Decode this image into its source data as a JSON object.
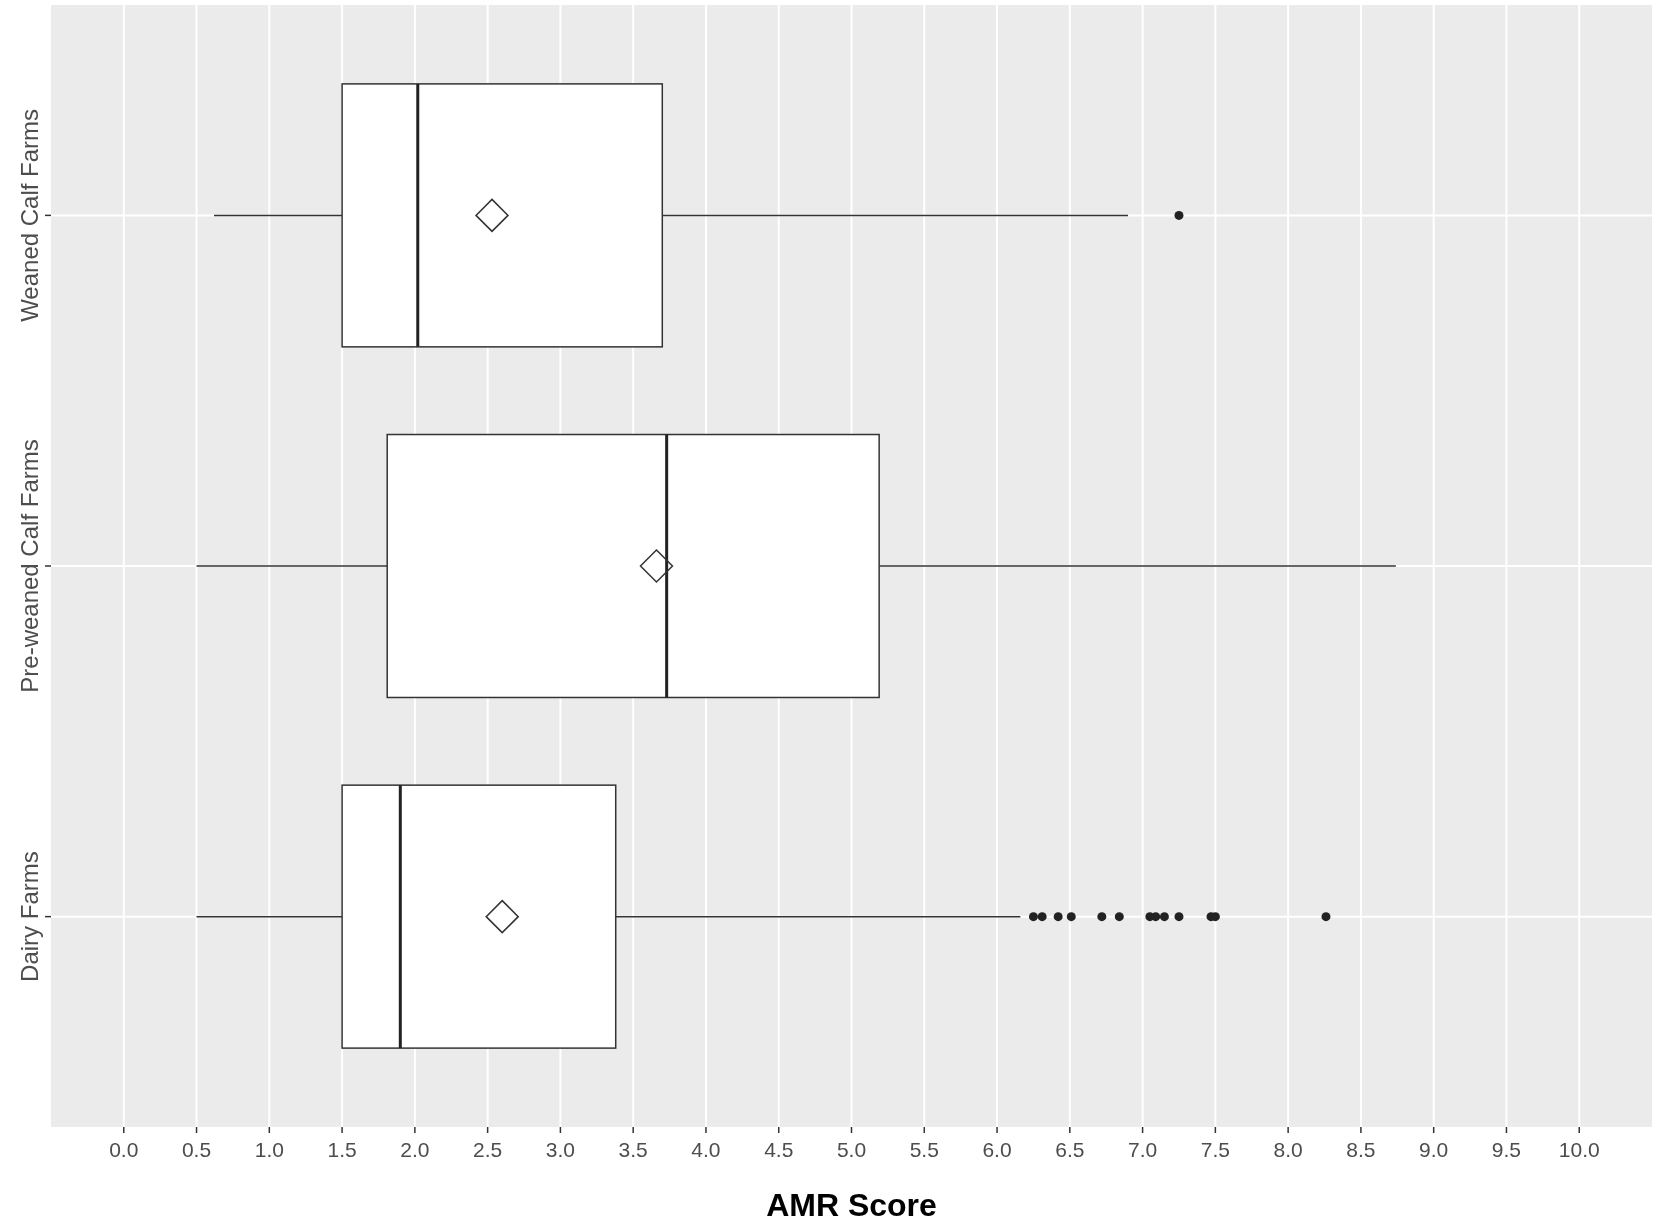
{
  "chart_data": {
    "type": "box",
    "orientation": "horizontal",
    "xlabel": "AMR Score",
    "categories": [
      "Weaned Calf Farms",
      "Pre-weaned Calf Farms",
      "Dairy Farms"
    ],
    "boxes": [
      {
        "low": 0.62,
        "q1": 1.5,
        "median": 2.02,
        "q3": 3.7,
        "high": 6.9,
        "mean": 2.53,
        "outliers": [
          7.25
        ]
      },
      {
        "low": 0.5,
        "q1": 1.81,
        "median": 3.73,
        "q3": 5.19,
        "high": 8.74,
        "mean": 3.66
      },
      {
        "low": 0.5,
        "q1": 1.5,
        "median": 1.9,
        "q3": 3.38,
        "high": 6.16,
        "mean": 2.6,
        "outliers": [
          6.25,
          6.31,
          6.42,
          6.51,
          6.72,
          6.84,
          7.05,
          7.09,
          7.15,
          7.25,
          7.47,
          7.5,
          8.26
        ]
      }
    ],
    "xlim": [
      -0.5,
      10.5
    ],
    "xticks": [
      {
        "value": 0,
        "label": "0.0"
      },
      {
        "value": 0.5,
        "label": "0.5"
      },
      {
        "value": 1,
        "label": "1.0"
      },
      {
        "value": 1.5,
        "label": "1.5"
      },
      {
        "value": 2,
        "label": "2.0"
      },
      {
        "value": 2.5,
        "label": "2.5"
      },
      {
        "value": 3,
        "label": "3.0"
      },
      {
        "value": 3.5,
        "label": "3.5"
      },
      {
        "value": 4,
        "label": "4.0"
      },
      {
        "value": 4.5,
        "label": "4.5"
      },
      {
        "value": 5,
        "label": "5.0"
      },
      {
        "value": 5.5,
        "label": "5.5"
      },
      {
        "value": 6,
        "label": "6.0"
      },
      {
        "value": 6.5,
        "label": "6.5"
      },
      {
        "value": 7,
        "label": "7.0"
      },
      {
        "value": 7.5,
        "label": "7.5"
      },
      {
        "value": 8,
        "label": "8.0"
      },
      {
        "value": 8.5,
        "label": "8.5"
      },
      {
        "value": 9,
        "label": "9.0"
      },
      {
        "value": 9.5,
        "label": "9.5"
      },
      {
        "value": 10,
        "label": "10.0"
      }
    ],
    "grid": true
  }
}
